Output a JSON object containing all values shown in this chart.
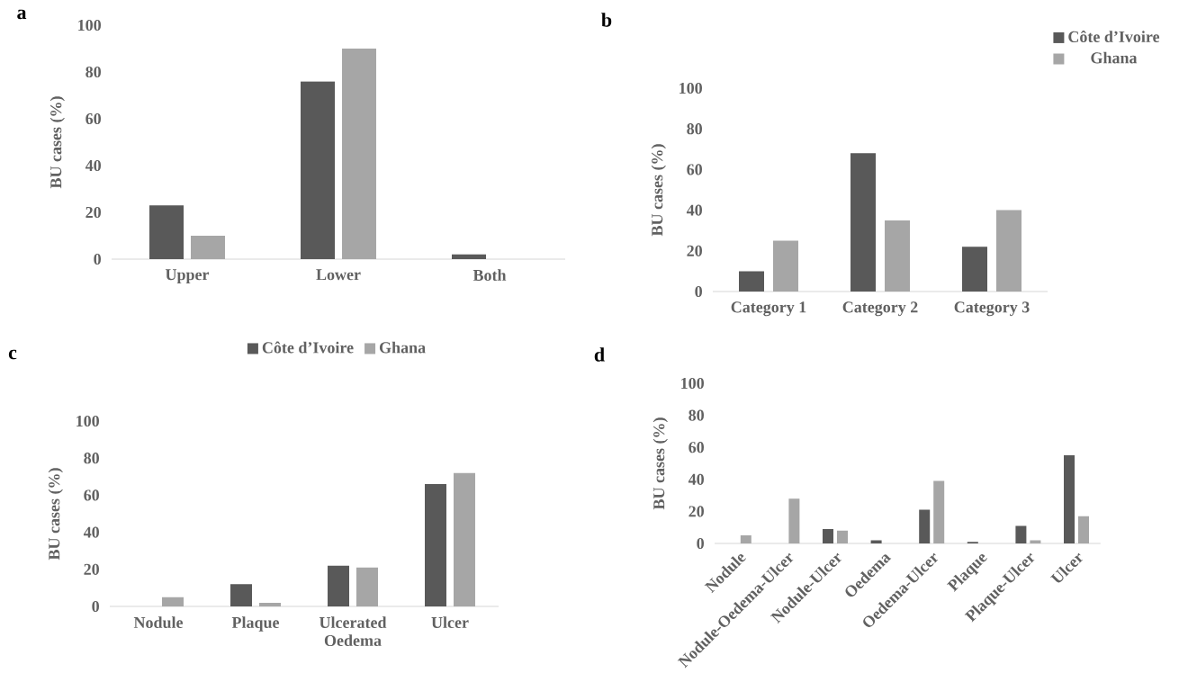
{
  "chart_data": [
    {
      "type": "bar",
      "title": "a",
      "ylabel": "BU cases (%)",
      "categories": [
        "Upper",
        "Lower",
        "Both"
      ],
      "ylim": [
        0,
        100
      ],
      "yticks": [
        0,
        20,
        40,
        60,
        80,
        100
      ],
      "legend": "bottom",
      "grid": false,
      "series": [
        {
          "name": "Côte d’Ivoire",
          "color": "#595959",
          "values": [
            23,
            76,
            2
          ]
        },
        {
          "name": "Ghana",
          "color": "#a6a6a6",
          "values": [
            10,
            90,
            0
          ]
        }
      ]
    },
    {
      "type": "bar",
      "title": "b",
      "ylabel": "BU cases (%)",
      "categories": [
        "Category 1",
        "Category 2",
        "Category 3"
      ],
      "ylim": [
        0,
        100
      ],
      "yticks": [
        0,
        20,
        40,
        60,
        80,
        100
      ],
      "legend": "top right",
      "grid": false,
      "series": [
        {
          "name": "Côte d’Ivoire",
          "color": "#595959",
          "values": [
            10,
            68,
            22
          ]
        },
        {
          "name": "Ghana",
          "color": "#a6a6a6",
          "values": [
            25,
            35,
            40
          ]
        }
      ]
    },
    {
      "type": "bar",
      "title": "c",
      "ylabel": "BU cases (%)",
      "categories": [
        "Nodule",
        "Plaque",
        "Ulcerated Oedema",
        "Ulcer"
      ],
      "ylim": [
        0,
        100
      ],
      "yticks": [
        0,
        20,
        40,
        60,
        80,
        100
      ],
      "grid": false,
      "series": [
        {
          "color": "#595959",
          "values": [
            0,
            12,
            22,
            66
          ]
        },
        {
          "color": "#a6a6a6",
          "values": [
            5,
            2,
            21,
            72
          ]
        }
      ]
    },
    {
      "type": "bar",
      "title": "d",
      "ylabel": "BU cases (%)",
      "categories": [
        "Nodule",
        "Nodule-Oedema-Ulcer",
        "Nodule-Ulcer",
        "Oedema",
        "Oedema-Ulcer",
        "Plaque",
        "Plaque-Ulcer",
        "Ulcer"
      ],
      "ylim": [
        0,
        100
      ],
      "yticks": [
        0,
        20,
        40,
        60,
        80,
        100
      ],
      "grid": false,
      "series": [
        {
          "color": "#595959",
          "values": [
            0,
            0,
            9,
            2,
            21,
            1,
            11,
            55
          ]
        },
        {
          "color": "#a6a6a6",
          "values": [
            5,
            28,
            8,
            0,
            39,
            0,
            2,
            17
          ]
        }
      ]
    }
  ]
}
